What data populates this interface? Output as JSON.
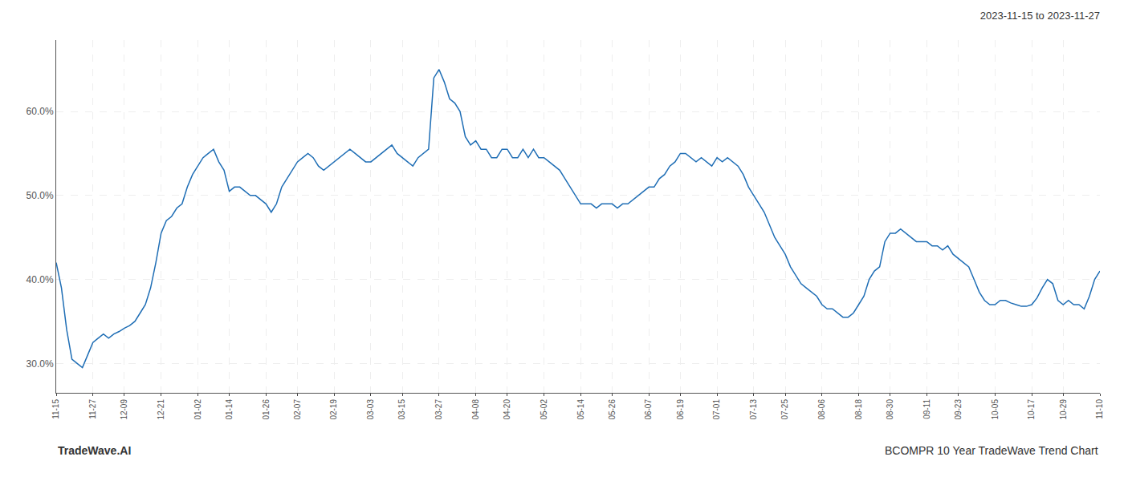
{
  "chart_data": {
    "type": "line",
    "title": "2023-11-15 to 2023-11-27",
    "annotations": [
      "TradeWave.AI",
      "BCOMPR 10 Year TradeWave Trend Chart"
    ],
    "categories": [
      "11-15",
      null,
      null,
      null,
      null,
      null,
      null,
      "11-27",
      null,
      null,
      null,
      null,
      null,
      "12-09",
      null,
      null,
      null,
      null,
      null,
      null,
      "12-21",
      null,
      null,
      null,
      null,
      null,
      null,
      "01-02",
      null,
      null,
      null,
      null,
      null,
      "01-14",
      null,
      null,
      null,
      null,
      null,
      null,
      "01-26",
      null,
      null,
      null,
      null,
      null,
      "02-07",
      null,
      null,
      null,
      null,
      null,
      null,
      "02-19",
      null,
      null,
      null,
      null,
      null,
      null,
      "03-03",
      null,
      null,
      null,
      null,
      null,
      "03-15",
      null,
      null,
      null,
      null,
      null,
      null,
      "03-27",
      null,
      null,
      null,
      null,
      null,
      null,
      "04-08",
      null,
      null,
      null,
      null,
      null,
      "04-20",
      null,
      null,
      null,
      null,
      null,
      null,
      "05-02",
      null,
      null,
      null,
      null,
      null,
      null,
      "05-14",
      null,
      null,
      null,
      null,
      null,
      "05-26",
      null,
      null,
      null,
      null,
      null,
      null,
      "06-07",
      null,
      null,
      null,
      null,
      null,
      "06-19",
      null,
      null,
      null,
      null,
      null,
      null,
      "07-01",
      null,
      null,
      null,
      null,
      null,
      null,
      "07-13",
      null,
      null,
      null,
      null,
      null,
      "07-25",
      null,
      null,
      null,
      null,
      null,
      null,
      "08-06",
      null,
      null,
      null,
      null,
      null,
      null,
      "08-18",
      null,
      null,
      null,
      null,
      null,
      "08-30",
      null,
      null,
      null,
      null,
      null,
      null,
      "09-11",
      null,
      null,
      null,
      null,
      null,
      "09-23",
      null,
      null,
      null,
      null,
      null,
      null,
      "10-05",
      null,
      null,
      null,
      null,
      null,
      null,
      "10-17",
      null,
      null,
      null,
      null,
      null,
      "10-29",
      null,
      null,
      null,
      null,
      null,
      null,
      "11-10"
    ],
    "values": [
      0.42,
      0.39,
      0.34,
      0.305,
      0.3,
      0.295,
      0.31,
      0.325,
      0.33,
      0.335,
      0.33,
      0.335,
      0.338,
      0.342,
      0.345,
      0.35,
      0.36,
      0.37,
      0.39,
      0.42,
      0.455,
      0.47,
      0.475,
      0.485,
      0.49,
      0.51,
      0.525,
      0.535,
      0.545,
      0.55,
      0.555,
      0.54,
      0.53,
      0.505,
      0.51,
      0.51,
      0.505,
      0.5,
      0.5,
      0.495,
      0.49,
      0.48,
      0.49,
      0.51,
      0.52,
      0.53,
      0.54,
      0.545,
      0.55,
      0.545,
      0.535,
      0.53,
      0.535,
      0.54,
      0.545,
      0.55,
      0.555,
      0.55,
      0.545,
      0.54,
      0.54,
      0.545,
      0.55,
      0.555,
      0.56,
      0.55,
      0.545,
      0.54,
      0.535,
      0.545,
      0.55,
      0.555,
      0.64,
      0.65,
      0.635,
      0.615,
      0.61,
      0.6,
      0.57,
      0.56,
      0.565,
      0.555,
      0.555,
      0.545,
      0.545,
      0.555,
      0.555,
      0.545,
      0.545,
      0.555,
      0.545,
      0.555,
      0.545,
      0.545,
      0.54,
      0.535,
      0.53,
      0.52,
      0.51,
      0.5,
      0.49,
      0.49,
      0.49,
      0.485,
      0.49,
      0.49,
      0.49,
      0.485,
      0.49,
      0.49,
      0.495,
      0.5,
      0.505,
      0.51,
      0.51,
      0.52,
      0.525,
      0.535,
      0.54,
      0.55,
      0.55,
      0.545,
      0.54,
      0.545,
      0.54,
      0.535,
      0.545,
      0.54,
      0.545,
      0.54,
      0.535,
      0.525,
      0.51,
      0.5,
      0.49,
      0.48,
      0.465,
      0.45,
      0.44,
      0.43,
      0.415,
      0.405,
      0.395,
      0.39,
      0.385,
      0.38,
      0.37,
      0.365,
      0.365,
      0.36,
      0.355,
      0.355,
      0.36,
      0.37,
      0.38,
      0.4,
      0.41,
      0.415,
      0.445,
      0.455,
      0.455,
      0.46,
      0.455,
      0.45,
      0.445,
      0.445,
      0.445,
      0.44,
      0.44,
      0.435,
      0.44,
      0.43,
      0.425,
      0.42,
      0.415,
      0.4,
      0.385,
      0.375,
      0.37,
      0.37,
      0.375,
      0.375,
      0.372,
      0.37,
      0.368,
      0.368,
      0.37,
      0.378,
      0.39,
      0.4,
      0.395,
      0.375,
      0.37,
      0.375,
      0.37,
      0.37,
      0.365,
      0.38,
      0.4,
      0.41
    ],
    "color": "#1f6eb5",
    "ylim": [
      0.265,
      0.685
    ],
    "yticks": [
      {
        "value": 0.3,
        "label": "30.0%"
      },
      {
        "value": 0.4,
        "label": "40.0%"
      },
      {
        "value": 0.5,
        "label": "50.0%"
      },
      {
        "value": 0.6,
        "label": "60.0%"
      }
    ],
    "grid": true
  }
}
